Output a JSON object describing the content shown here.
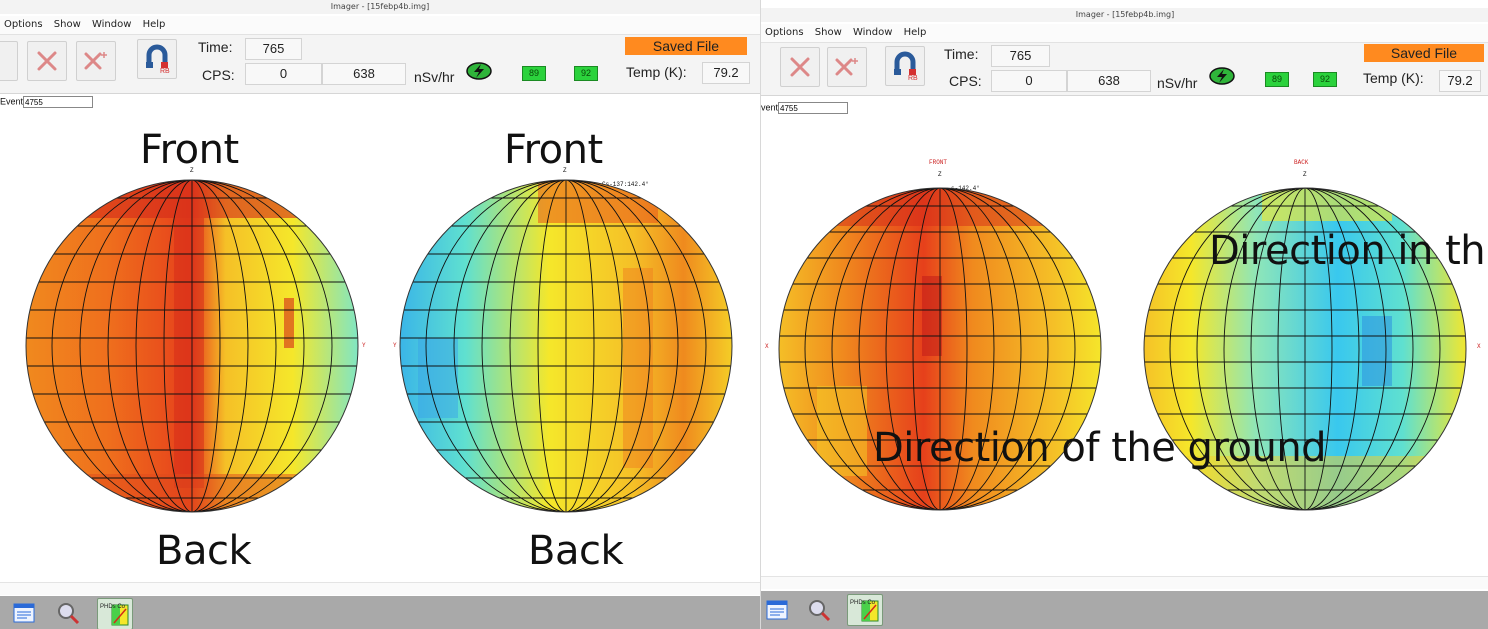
{
  "window": {
    "title": "Imager - [15febp4b.img]"
  },
  "menu": {
    "items": [
      "Options",
      "Show",
      "Window",
      "Help"
    ]
  },
  "toolbar": {
    "time_label": "Time:",
    "time_value": "765",
    "cps_label": "CPS:",
    "cps_value_1": "0",
    "cps_value_2": "638",
    "dose_unit": "nSv/hr",
    "battery_1": "89",
    "battery_2": "92",
    "saved_label": "Saved File",
    "temp_label": "Temp (K):",
    "temp_value": "79.2",
    "rb_text": "RB"
  },
  "event": {
    "label": "Event",
    "value": "4755"
  },
  "left_panel": {
    "label_front_1": "Front",
    "label_front_2": "Front",
    "label_back_1": "Back",
    "label_back_2": "Back",
    "axis_z": "Z",
    "axis_y": "Y",
    "marker_text": "Cs-137:142.4°"
  },
  "right_panel": {
    "tiny_front": "FRONT",
    "tiny_back": "BACK",
    "axis_z": "Z",
    "axis_x": "X",
    "marker_text": "s-142.4°",
    "annotation_sky": "Direction in th",
    "annotation_ground": "Direction of the ground"
  },
  "taskbar": {
    "app_label": "PHDs Co"
  },
  "colors": {
    "hot": "#d42a1a",
    "warm": "#f08a1e",
    "mid": "#f5e72a",
    "cool": "#5fe0d0",
    "cold": "#39b4e8",
    "saved": "#ff8a1f",
    "battery": "#2bd23c",
    "taskbar": "#a9a9a9"
  },
  "icons": [
    "delete-icon",
    "delete-plus-icon",
    "rb-magnet-icon",
    "lightning-icon",
    "battery-icon",
    "notepad-icon",
    "search-tool-icon",
    "phds-app-icon"
  ]
}
